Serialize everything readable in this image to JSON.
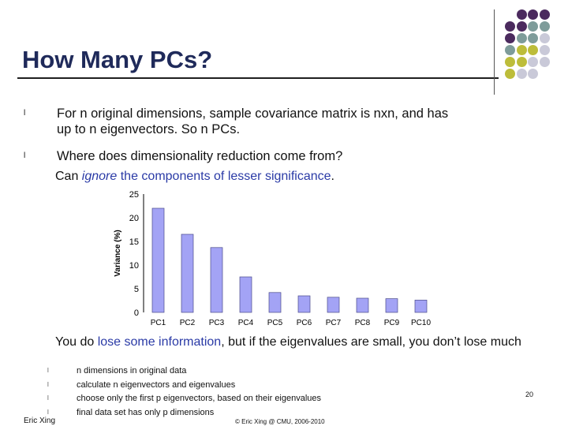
{
  "slide": {
    "title": "How Many PCs?",
    "bullets": [
      {
        "line1": "For n original dimensions, sample covariance matrix is nxn, and has",
        "line2": "up to n eigenvectors. So n PCs."
      },
      {
        "line1": "Where does dimensionality reduction come from?"
      }
    ],
    "sub_line": {
      "prefix": "Can ",
      "ignore": "ignore",
      "rest": " the components of lesser significance",
      "period": "."
    },
    "note": {
      "prefix": "You do ",
      "highlight": "lose some information",
      "rest": ", but if the eigenvalues are small, you don’t lose much"
    },
    "steps": [
      "n dimensions in original data",
      "calculate n eigenvectors and eigenvalues",
      "choose only the first p eigenvectors, based on their eigenvalues",
      "final data set has only p dimensions"
    ],
    "footer_left": "Eric Xing",
    "footer_mid": "© Eric Xing @ CMU, 2006-2010",
    "page_number": "20",
    "bullet_glyph": "l",
    "colors": {
      "title": "#1f2a5a",
      "highlight": "#2a3aa6",
      "bar": "#a3a3f5",
      "bar_stroke": "#4a4a8a",
      "dot_purple": "#4b2a5e",
      "dot_teal": "#7e9c9a",
      "dot_olive": "#bdbd3a",
      "dot_gray": "#c9c9d8"
    }
  },
  "chart_data": {
    "type": "bar",
    "categories": [
      "PC1",
      "PC2",
      "PC3",
      "PC4",
      "PC5",
      "PC6",
      "PC7",
      "PC8",
      "PC9",
      "PC10"
    ],
    "values": [
      22,
      16.5,
      13.7,
      7.5,
      4.2,
      3.5,
      3.2,
      3.0,
      2.9,
      2.6
    ],
    "ylabel": "Variance (%)",
    "ylim": [
      0,
      25
    ],
    "yticks": [
      "0",
      "5",
      "10",
      "15",
      "20",
      "25"
    ],
    "grid": false
  }
}
